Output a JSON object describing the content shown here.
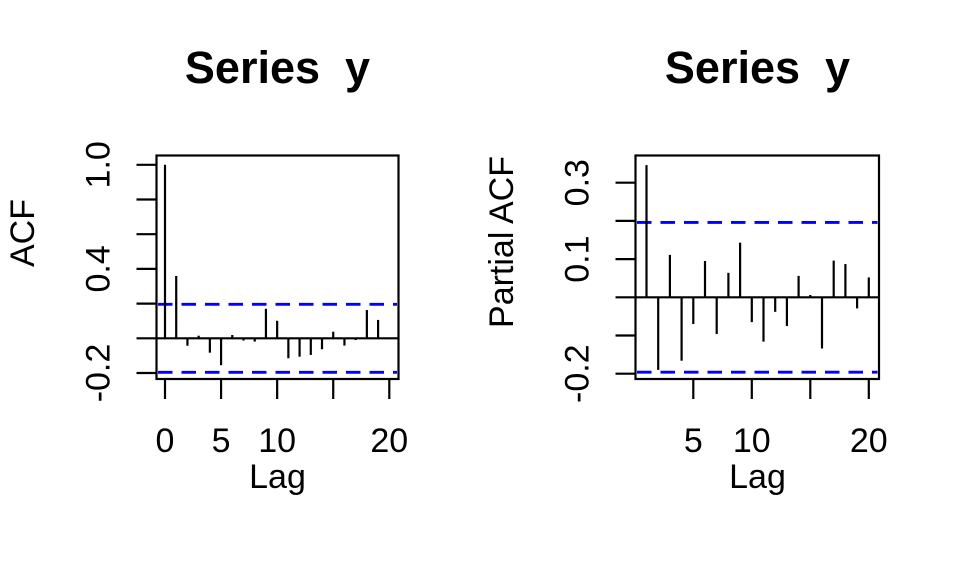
{
  "figure": {
    "background_color": "#ffffff",
    "foreground_color": "#000000",
    "ci_line_color": "#0000ff"
  },
  "chart_data": [
    {
      "type": "bar",
      "chart_kind": "autocorrelation",
      "title": "Series  y",
      "xlabel": "Lag",
      "ylabel": "ACF",
      "lags": [
        0,
        1,
        2,
        3,
        4,
        5,
        6,
        7,
        8,
        9,
        10,
        11,
        12,
        13,
        14,
        15,
        16,
        17,
        18,
        19,
        20
      ],
      "values": [
        1.0,
        0.359,
        -0.043,
        0.015,
        -0.083,
        -0.155,
        0.019,
        -0.013,
        -0.019,
        0.17,
        0.101,
        -0.115,
        -0.106,
        -0.096,
        -0.063,
        0.038,
        -0.042,
        -0.01,
        0.163,
        0.106,
        -0.005
      ],
      "confidence_limits": [
        0.196,
        -0.196
      ],
      "ci_line_style": "dashed",
      "xlim": [
        0,
        20
      ],
      "ylim": [
        -0.25,
        1.05
      ],
      "grid": false,
      "legend": null,
      "yticks": [
        {
          "value": 1.0,
          "label": "1.0"
        },
        {
          "value": 0.8,
          "label": ""
        },
        {
          "value": 0.6,
          "label": ""
        },
        {
          "value": 0.4,
          "label": "0.4"
        },
        {
          "value": 0.2,
          "label": ""
        },
        {
          "value": 0.0,
          "label": ""
        },
        {
          "value": -0.2,
          "label": "-0.2"
        }
      ],
      "xticks": [
        {
          "value": 0,
          "label": "0"
        },
        {
          "value": 5,
          "label": "5"
        },
        {
          "value": 10,
          "label": "10"
        },
        {
          "value": 15,
          "label": ""
        },
        {
          "value": 20,
          "label": "20"
        }
      ]
    },
    {
      "type": "bar",
      "chart_kind": "partial-autocorrelation",
      "title": "Series  y",
      "xlabel": "Lag",
      "ylabel": "Partial ACF",
      "lags": [
        1,
        2,
        3,
        4,
        5,
        6,
        7,
        8,
        9,
        10,
        11,
        12,
        13,
        14,
        15,
        16,
        17,
        18,
        19,
        20
      ],
      "values": [
        0.346,
        -0.19,
        0.111,
        -0.166,
        -0.07,
        0.095,
        -0.096,
        0.064,
        0.143,
        -0.065,
        -0.116,
        -0.038,
        -0.075,
        0.056,
        0.006,
        -0.134,
        0.096,
        0.087,
        -0.029,
        0.052
      ],
      "confidence_limits": [
        0.196,
        -0.196
      ],
      "ci_line_style": "dashed",
      "xlim": [
        1,
        20
      ],
      "ylim": [
        -0.21,
        0.37
      ],
      "grid": false,
      "legend": null,
      "yticks": [
        {
          "value": 0.3,
          "label": "0.3"
        },
        {
          "value": 0.2,
          "label": ""
        },
        {
          "value": 0.1,
          "label": "0.1"
        },
        {
          "value": 0.0,
          "label": ""
        },
        {
          "value": -0.1,
          "label": ""
        },
        {
          "value": -0.2,
          "label": "-0.2"
        }
      ],
      "xticks": [
        {
          "value": 5,
          "label": "5"
        },
        {
          "value": 10,
          "label": "10"
        },
        {
          "value": 15,
          "label": ""
        },
        {
          "value": 20,
          "label": "20"
        }
      ]
    }
  ]
}
